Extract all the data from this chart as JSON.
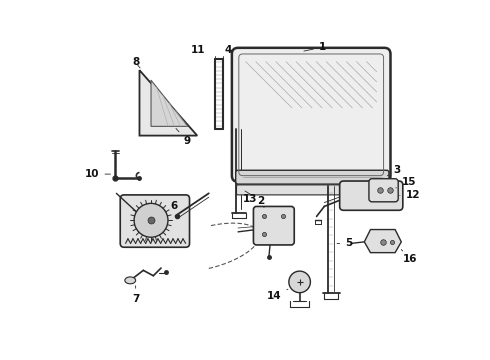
{
  "background_color": "#ffffff",
  "line_color": "#2a2a2a",
  "fig_w": 4.9,
  "fig_h": 3.6,
  "dpi": 100,
  "fontsize": 7.5
}
